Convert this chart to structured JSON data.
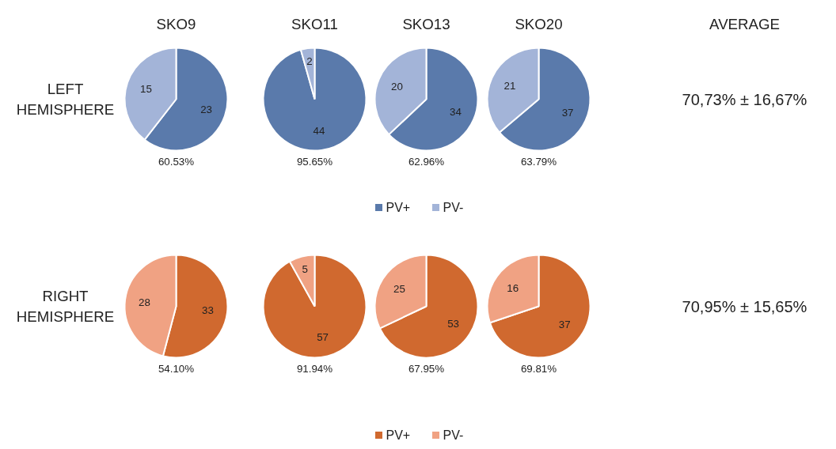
{
  "chart_data": [
    {
      "type": "pie",
      "title": "SKO9",
      "ylabel": "LEFT HEMISPHERE",
      "categories": [
        null,
        null
      ],
      "values": [
        23,
        15
      ],
      "colors": [
        "#5a7aab",
        "#a3b4d8"
      ],
      "data_labels": true,
      "annotations": [
        "60.53%"
      ]
    },
    {
      "type": "pie",
      "title": "SKO11",
      "categories": [
        null,
        null
      ],
      "values": [
        44,
        2
      ],
      "colors": [
        "#5a7aab",
        "#a3b4d8"
      ],
      "data_labels": true,
      "annotations": [
        "95.65%"
      ]
    },
    {
      "type": "pie",
      "title": "SKO13",
      "categories": [
        "PV+",
        "PV-"
      ],
      "values": [
        34,
        20
      ],
      "colors": [
        "#5a7aab",
        "#a3b4d8"
      ],
      "data_labels": true,
      "legend": "bottom",
      "annotations": [
        "62.96%"
      ]
    },
    {
      "type": "pie",
      "title": "SKO20",
      "categories": [
        null,
        null
      ],
      "values": [
        37,
        21
      ],
      "colors": [
        "#5a7aab",
        "#a3b4d8"
      ],
      "data_labels": true,
      "annotations": [
        "63.79%"
      ]
    },
    {
      "type": "other",
      "title": "AVERAGE",
      "annotations": [
        "70,73% ± 16,67%"
      ]
    },
    {
      "type": "pie",
      "ylabel": "RIGHT HEMISPHERE",
      "categories": [
        null,
        null
      ],
      "values": [
        33,
        28
      ],
      "colors": [
        "#d0692f",
        "#f0a283"
      ],
      "data_labels": true,
      "annotations": [
        "54.10%"
      ]
    },
    {
      "type": "pie",
      "categories": [
        null,
        null
      ],
      "values": [
        57,
        5
      ],
      "colors": [
        "#d0692f",
        "#f0a283"
      ],
      "data_labels": true,
      "annotations": [
        "91.94%"
      ]
    },
    {
      "type": "pie",
      "categories": [
        "PV+",
        "PV-"
      ],
      "values": [
        53,
        25
      ],
      "colors": [
        "#d0692f",
        "#f0a283"
      ],
      "data_labels": true,
      "legend": "bottom",
      "annotations": [
        "67.95%"
      ]
    },
    {
      "type": "pie",
      "categories": [
        null,
        null
      ],
      "values": [
        37,
        16
      ],
      "colors": [
        "#d0692f",
        "#f0a283"
      ],
      "data_labels": true,
      "annotations": [
        "69.81%"
      ]
    },
    {
      "type": "other",
      "annotations": [
        "70,95% ± 15,65%"
      ]
    }
  ]
}
